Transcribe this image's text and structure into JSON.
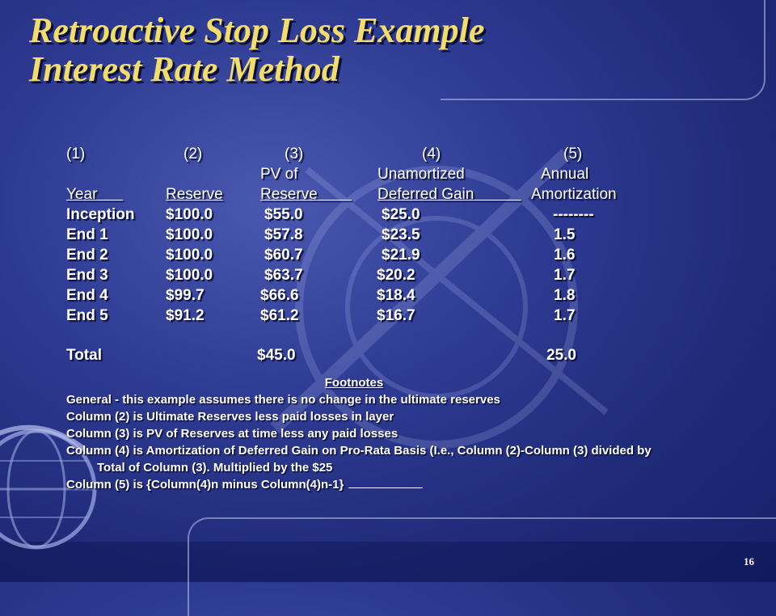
{
  "slide": {
    "title_line1": "Retroactive Stop Loss Example",
    "title_line2": "Interest Rate Method",
    "page_number": "16"
  },
  "table": {
    "col_numbers": [
      "(1)",
      "(2)",
      "(3)",
      "(4)",
      "(5)"
    ],
    "header_line1": [
      "",
      "",
      "PV of",
      "Unamortized",
      "Annual"
    ],
    "header_line2": [
      "Year",
      "Reserve",
      "Reserve",
      "Deferred Gain",
      "Amortization"
    ],
    "rows": [
      [
        "Inception",
        "$100.0",
        "$55.0",
        "$25.0",
        "--------"
      ],
      [
        "End 1",
        "$100.0",
        "$57.8",
        "$23.5",
        "1.5"
      ],
      [
        "End 2",
        "$100.0",
        "$60.7",
        "$21.9",
        "1.6"
      ],
      [
        "End 3",
        "$100.0",
        "$63.7",
        "$20.2",
        "1.7"
      ],
      [
        "End 4",
        "$99.7",
        "$66.6",
        "$18.4",
        "1.8"
      ],
      [
        "End 5",
        "$91.2",
        "$61.2",
        "$16.7",
        "1.7"
      ]
    ],
    "total": {
      "label": "Total",
      "col3": "$45.0",
      "col5": "25.0"
    }
  },
  "footnotes": {
    "heading": "Footnotes",
    "lines": [
      "General  - this example assumes there is no change in the ultimate reserves",
      "Column (2)  is Ultimate Reserves less paid losses in layer",
      "Column (3) is PV of Reserves at time less any paid losses",
      "Column (4) is Amortization of Deferred Gain on Pro-Rata Basis (I.e., Column (2)-Column (3) divided by",
      "Total of Column (3). Multiplied by the $25",
      "Column (5) is {Column(4)n minus Column(4)n-1}"
    ]
  }
}
